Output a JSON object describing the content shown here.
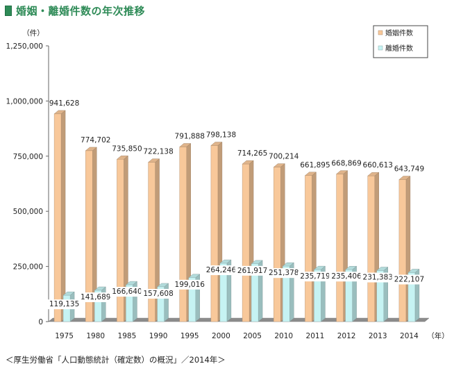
{
  "header": {
    "title": "婚姻・離婚件数の年次推移"
  },
  "source": "＜厚生労働省「人口動態統計（確定数）の概況」／2014年＞",
  "colors": {
    "marriage": "#f8c89a",
    "divorce": "#c6f3f3",
    "title": "#2e8b57"
  },
  "chart_data": {
    "type": "bar",
    "ylabel": "（件）",
    "xunit": "（年）",
    "ylim": [
      0,
      1250000
    ],
    "yticks": [
      0,
      250000,
      500000,
      750000,
      1000000,
      1250000
    ],
    "ytick_labels": [
      "0",
      "250,000",
      "500,000",
      "750,000",
      "1,000,000",
      "1,250,000"
    ],
    "categories": [
      "1975",
      "1980",
      "1985",
      "1990",
      "1995",
      "2000",
      "2005",
      "2010",
      "2011",
      "2012",
      "2013",
      "2014"
    ],
    "series": [
      {
        "name": "婚姻件数",
        "values": [
          941628,
          774702,
          735850,
          722138,
          791888,
          798138,
          714265,
          700214,
          661895,
          668869,
          660613,
          643749
        ],
        "labels": [
          "941,628",
          "774,702",
          "735,850",
          "722,138",
          "791,888",
          "798,138",
          "714,265",
          "700,214",
          "661,895",
          "668,869",
          "660,613",
          "643,749"
        ]
      },
      {
        "name": "離婚件数",
        "values": [
          119135,
          141689,
          166640,
          157608,
          199016,
          264246,
          261917,
          251378,
          235719,
          235406,
          231383,
          222107
        ],
        "labels": [
          "119,135",
          "141,689",
          "166,640",
          "157,608",
          "199,016",
          "264,246",
          "261,917",
          "251,378",
          "235,719",
          "235,406",
          "231,383",
          "222,107"
        ]
      }
    ],
    "legend_position": "top-right",
    "grid": false
  }
}
